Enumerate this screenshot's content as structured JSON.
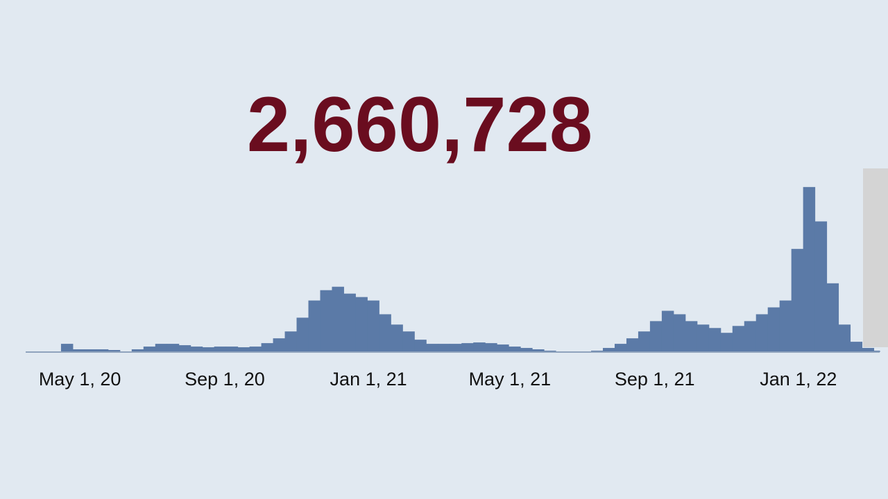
{
  "chart_data": {
    "type": "bar",
    "headline": "2,660,728",
    "color": "#5b7aa7",
    "xlim": [
      75,
      800
    ],
    "ylim": [
      0,
      260
    ],
    "xticks": [
      {
        "value": 121,
        "label": "May 1, 20"
      },
      {
        "value": 244,
        "label": "Sep 1, 20"
      },
      {
        "value": 366,
        "label": "Jan 1, 21"
      },
      {
        "value": 486,
        "label": "May 1, 21"
      },
      {
        "value": 609,
        "label": "Sep 1, 21"
      },
      {
        "value": 731,
        "label": "Jan 1, 22"
      }
    ],
    "x": [
      75,
      85,
      95,
      105,
      115,
      125,
      135,
      145,
      155,
      165,
      175,
      185,
      195,
      205,
      215,
      225,
      235,
      245,
      255,
      265,
      275,
      285,
      295,
      305,
      315,
      325,
      335,
      345,
      355,
      365,
      375,
      385,
      395,
      405,
      415,
      425,
      435,
      445,
      455,
      465,
      475,
      485,
      495,
      505,
      515,
      525,
      535,
      545,
      555,
      565,
      575,
      585,
      595,
      605,
      615,
      625,
      635,
      645,
      655,
      665,
      675,
      685,
      695,
      705,
      715,
      725,
      735,
      745,
      755,
      765,
      775,
      785,
      795
    ],
    "values": [
      0,
      0,
      0,
      12,
      4,
      4,
      4,
      3,
      1,
      4,
      8,
      12,
      12,
      10,
      8,
      7,
      8,
      8,
      7,
      8,
      13,
      20,
      30,
      50,
      75,
      90,
      95,
      85,
      80,
      75,
      55,
      40,
      30,
      18,
      12,
      12,
      12,
      13,
      14,
      13,
      11,
      8,
      6,
      4,
      2,
      1,
      1,
      1,
      2,
      6,
      12,
      20,
      30,
      45,
      60,
      55,
      45,
      40,
      35,
      28,
      38,
      45,
      55,
      65,
      75,
      150,
      240,
      190,
      100,
      40,
      15,
      6,
      2
    ]
  }
}
